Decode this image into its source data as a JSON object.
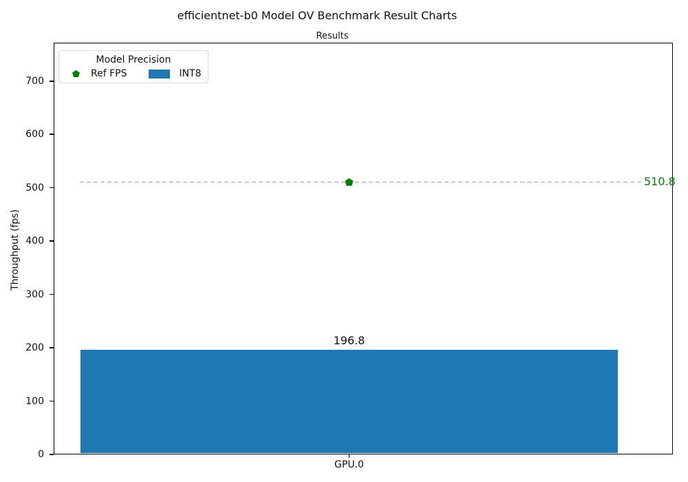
{
  "figure": {
    "title": "efficientnet-b0 Model OV Benchmark Result Charts"
  },
  "chart_data": {
    "type": "bar",
    "title": "Results",
    "xlabel": "",
    "ylabel": "Throughput (fps)",
    "categories": [
      "GPU.0"
    ],
    "yticks": [
      0,
      100,
      200,
      300,
      400,
      500,
      600,
      700
    ],
    "ylim": [
      0,
      772
    ],
    "grid": false,
    "series": [
      {
        "name": "INT8",
        "kind": "bar",
        "values": [
          196.8
        ],
        "labels": [
          "196.8"
        ],
        "color": "#1f77b4"
      },
      {
        "name": "Ref FPS",
        "kind": "reference_line",
        "values": [
          510.8
        ],
        "labels": [
          "510.8"
        ],
        "color": "#008000",
        "line_color": "#a3a3a3",
        "line_style": "dashed",
        "marker": "pentagon"
      }
    ],
    "legend": {
      "position": "upper-left",
      "title": "Model Precision",
      "entries": [
        {
          "label": "Ref FPS",
          "marker": "pentagon",
          "color": "#008000"
        },
        {
          "label": "INT8",
          "marker": "rect",
          "color": "#1f77b4"
        }
      ]
    }
  }
}
